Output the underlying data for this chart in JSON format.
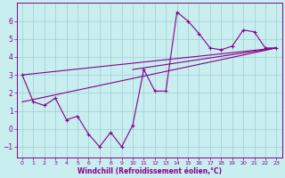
{
  "xlabel": "Windchill (Refroidissement éolien,°C)",
  "background_color": "#c8eef0",
  "grid_color": "#a0ccd0",
  "line_color": "#880088",
  "spine_color": "#880088",
  "xlim": [
    -0.5,
    23.5
  ],
  "ylim": [
    -1.6,
    7.0
  ],
  "yticks": [
    -1,
    0,
    1,
    2,
    3,
    4,
    5,
    6
  ],
  "xticks": [
    0,
    1,
    2,
    3,
    4,
    5,
    6,
    7,
    8,
    9,
    10,
    11,
    12,
    13,
    14,
    15,
    16,
    17,
    18,
    19,
    20,
    21,
    22,
    23
  ],
  "series1_x": [
    0,
    1,
    2,
    3,
    4,
    5,
    6,
    7,
    8,
    9,
    10,
    11,
    12,
    13,
    14,
    15,
    16,
    17,
    18,
    19,
    20,
    21,
    22,
    23
  ],
  "series1_y": [
    3.0,
    1.5,
    1.3,
    1.7,
    0.5,
    0.7,
    -0.3,
    -1.0,
    -0.2,
    -1.0,
    0.2,
    3.3,
    2.1,
    2.1,
    6.5,
    6.0,
    5.3,
    4.5,
    4.4,
    4.6,
    5.5,
    5.4,
    4.5,
    4.5
  ],
  "line1_x": [
    0,
    23
  ],
  "line1_y": [
    1.5,
    4.5
  ],
  "line2_x": [
    0,
    23
  ],
  "line2_y": [
    3.0,
    4.5
  ],
  "line3_x": [
    10,
    23
  ],
  "line3_y": [
    3.3,
    4.5
  ]
}
